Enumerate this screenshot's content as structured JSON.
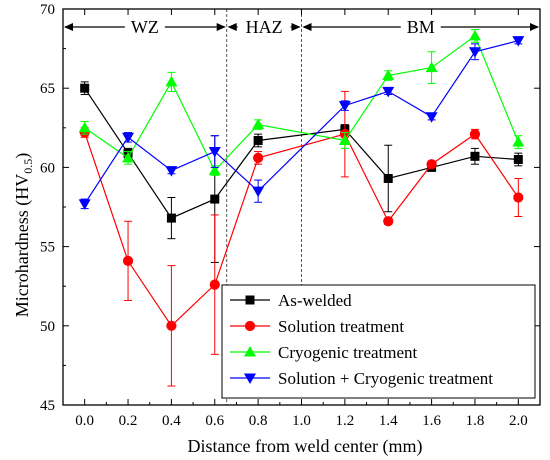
{
  "chart_data": {
    "type": "line",
    "title": "",
    "xlabel": "Distance from weld center (mm)",
    "ylabel_main": "Microhardness (HV",
    "ylabel_sub": "0.5",
    "ylabel_close": ")",
    "xlim": [
      -0.1,
      2.1
    ],
    "ylim": [
      45,
      70
    ],
    "x_ticks": [
      0.0,
      0.2,
      0.4,
      0.6,
      0.8,
      1.0,
      1.2,
      1.4,
      1.6,
      1.8,
      2.0
    ],
    "x_tick_labels": [
      "0.0",
      "0.2",
      "0.4",
      "0.6",
      "0.8",
      "1.0",
      "1.2",
      "1.4",
      "1.6",
      "1.8",
      "2.0"
    ],
    "y_ticks": [
      45,
      50,
      55,
      60,
      65,
      70
    ],
    "y_tick_labels": [
      "45",
      "50",
      "55",
      "60",
      "65",
      "70"
    ],
    "zones": [
      {
        "label": "WZ",
        "from": -0.1,
        "to": 0.655
      },
      {
        "label": "HAZ",
        "from": 0.655,
        "to": 1.0
      },
      {
        "label": "BM",
        "from": 1.0,
        "to": 2.1
      }
    ],
    "zone_boundaries": [
      0.655,
      1.0
    ],
    "legend_position": "bottom-right",
    "x": [
      0.0,
      0.2,
      0.4,
      0.6,
      0.8,
      1.2,
      1.4,
      1.6,
      1.8,
      2.0
    ],
    "series": [
      {
        "name": "As-welded",
        "color": "#000000",
        "marker": "square",
        "values": [
          65.0,
          60.9,
          56.8,
          58.0,
          61.7,
          62.4,
          59.3,
          60.0,
          60.7,
          60.5
        ],
        "errors": [
          0.4,
          0.3,
          1.3,
          4.0,
          0.4,
          0.3,
          2.1,
          0.2,
          0.5,
          0.4
        ]
      },
      {
        "name": "Solution treatment",
        "color": "#ff0000",
        "marker": "circle",
        "values": [
          62.2,
          54.1,
          50.0,
          52.6,
          60.6,
          62.1,
          56.6,
          60.2,
          62.1,
          58.1
        ],
        "errors": [
          0.3,
          2.5,
          3.8,
          4.4,
          0.4,
          2.7,
          0.2,
          0.2,
          0.3,
          1.2
        ]
      },
      {
        "name": "Cryogenic treatment",
        "color": "#00ff00",
        "marker": "triangle-up",
        "values": [
          62.5,
          60.6,
          65.4,
          59.8,
          62.7,
          61.7,
          65.8,
          66.3,
          68.3,
          61.6
        ],
        "errors": [
          0.4,
          0.4,
          0.6,
          0.3,
          0.3,
          0.5,
          0.3,
          1.0,
          0.4,
          0.4
        ]
      },
      {
        "name": "Solution + Cryogenic treatment",
        "color": "#0000ff",
        "marker": "triangle-down",
        "values": [
          57.7,
          61.9,
          59.8,
          61.0,
          58.5,
          63.9,
          64.8,
          63.2,
          67.3,
          68.0
        ],
        "errors": [
          0.3,
          0.3,
          0.2,
          1.0,
          0.7,
          0.3,
          0.2,
          0.2,
          0.5,
          0.2
        ]
      }
    ]
  }
}
